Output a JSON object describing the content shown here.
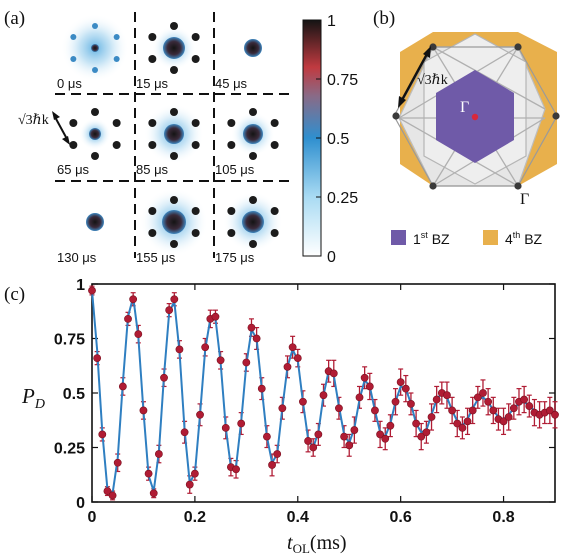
{
  "panel_a": {
    "label": "(a)",
    "momentum_label": "√3ℏk",
    "cells": [
      {
        "time": "0 μs"
      },
      {
        "time": "15 μs"
      },
      {
        "time": "45 μs"
      },
      {
        "time": "65 μs"
      },
      {
        "time": "85 μs"
      },
      {
        "time": "105 μs"
      },
      {
        "time": "130 μs"
      },
      {
        "time": "155 μs"
      },
      {
        "time": "175 μs"
      }
    ],
    "colorbar": {
      "ticks": [
        "1",
        "0.75",
        "0.5",
        "0.25",
        "0"
      ],
      "colors": [
        "#ffffff",
        "#9fd6f2",
        "#2f8fcf",
        "#8a6a86",
        "#b53040",
        "#1a1a1a"
      ]
    }
  },
  "panel_b": {
    "label": "(b)",
    "momentum_label": "√3ℏk",
    "gamma_center": "Γ",
    "gamma_corner": "Γ",
    "legend": [
      {
        "main": "1",
        "sup": "st",
        "suffix": " BZ",
        "color": "#6f5aa8"
      },
      {
        "main": "4",
        "sup": "th",
        "suffix": " BZ",
        "color": "#e8b04c"
      }
    ]
  },
  "panel_c": {
    "label": "(c)",
    "ylabel_main": "P",
    "ylabel_sub": "D",
    "xlabel_main": "t",
    "xlabel_sub": "OL",
    "xlabel_unit": "(ms)"
  },
  "chart_data": {
    "type": "scatter",
    "xlim": [
      0,
      0.9
    ],
    "ylim": [
      0,
      1
    ],
    "xticks": [
      "0",
      "0.2",
      "0.4",
      "0.6",
      "0.8"
    ],
    "xtick_values": [
      0,
      0.2,
      0.4,
      0.6,
      0.8
    ],
    "yticks": [
      "0",
      "0.25",
      "0.5",
      "0.75",
      "1"
    ],
    "ytick_values": [
      0,
      0.25,
      0.5,
      0.75,
      1
    ],
    "grid": false,
    "series": [
      {
        "kind": "points",
        "marker_color": "#b01c34",
        "x": [
          0.0,
          0.01,
          0.02,
          0.03,
          0.04,
          0.05,
          0.06,
          0.07,
          0.08,
          0.09,
          0.1,
          0.11,
          0.12,
          0.13,
          0.14,
          0.15,
          0.16,
          0.17,
          0.18,
          0.19,
          0.2,
          0.21,
          0.22,
          0.23,
          0.24,
          0.25,
          0.26,
          0.27,
          0.28,
          0.29,
          0.3,
          0.31,
          0.32,
          0.33,
          0.34,
          0.35,
          0.36,
          0.37,
          0.38,
          0.39,
          0.4,
          0.41,
          0.42,
          0.43,
          0.44,
          0.45,
          0.46,
          0.47,
          0.48,
          0.49,
          0.5,
          0.51,
          0.52,
          0.53,
          0.54,
          0.55,
          0.56,
          0.57,
          0.58,
          0.59,
          0.6,
          0.61,
          0.62,
          0.63,
          0.64,
          0.65,
          0.66,
          0.67,
          0.68,
          0.69,
          0.7,
          0.71,
          0.72,
          0.73,
          0.74,
          0.75,
          0.76,
          0.77,
          0.78,
          0.79,
          0.8,
          0.81,
          0.82,
          0.83,
          0.84,
          0.85,
          0.86,
          0.87,
          0.88,
          0.89,
          0.9
        ],
        "y": [
          0.97,
          0.66,
          0.31,
          0.05,
          0.03,
          0.18,
          0.53,
          0.84,
          0.93,
          0.77,
          0.42,
          0.13,
          0.04,
          0.22,
          0.57,
          0.88,
          0.93,
          0.7,
          0.32,
          0.08,
          0.13,
          0.4,
          0.71,
          0.84,
          0.85,
          0.65,
          0.34,
          0.16,
          0.15,
          0.36,
          0.64,
          0.8,
          0.75,
          0.52,
          0.3,
          0.17,
          0.22,
          0.43,
          0.62,
          0.71,
          0.66,
          0.46,
          0.28,
          0.25,
          0.31,
          0.49,
          0.6,
          0.59,
          0.43,
          0.3,
          0.26,
          0.33,
          0.48,
          0.57,
          0.53,
          0.42,
          0.31,
          0.29,
          0.35,
          0.46,
          0.55,
          0.52,
          0.45,
          0.36,
          0.3,
          0.32,
          0.39,
          0.47,
          0.5,
          0.49,
          0.42,
          0.36,
          0.34,
          0.37,
          0.42,
          0.48,
          0.5,
          0.46,
          0.42,
          0.38,
          0.37,
          0.39,
          0.43,
          0.46,
          0.47,
          0.44,
          0.41,
          0.4,
          0.41,
          0.42,
          0.4
        ],
        "err": [
          0.02,
          0.03,
          0.03,
          0.02,
          0.02,
          0.04,
          0.04,
          0.03,
          0.03,
          0.04,
          0.04,
          0.03,
          0.02,
          0.04,
          0.04,
          0.03,
          0.03,
          0.04,
          0.05,
          0.04,
          0.03,
          0.05,
          0.04,
          0.04,
          0.03,
          0.04,
          0.05,
          0.04,
          0.04,
          0.05,
          0.04,
          0.04,
          0.05,
          0.05,
          0.05,
          0.05,
          0.04,
          0.05,
          0.05,
          0.05,
          0.04,
          0.05,
          0.05,
          0.04,
          0.05,
          0.05,
          0.05,
          0.06,
          0.05,
          0.05,
          0.05,
          0.06,
          0.05,
          0.05,
          0.06,
          0.05,
          0.06,
          0.05,
          0.05,
          0.06,
          0.06,
          0.06,
          0.05,
          0.06,
          0.06,
          0.05,
          0.06,
          0.06,
          0.05,
          0.06,
          0.06,
          0.06,
          0.05,
          0.06,
          0.06,
          0.05,
          0.06,
          0.06,
          0.06,
          0.05,
          0.06,
          0.06,
          0.05,
          0.06,
          0.06,
          0.05,
          0.06,
          0.06,
          0.05,
          0.06,
          0.06
        ]
      },
      {
        "kind": "fit",
        "line_color": "#2f7fc1",
        "x": [
          0.0,
          0.01,
          0.02,
          0.03,
          0.04,
          0.05,
          0.06,
          0.07,
          0.08,
          0.09,
          0.1,
          0.11,
          0.12,
          0.13,
          0.14,
          0.15,
          0.16,
          0.17,
          0.18,
          0.19,
          0.2,
          0.21,
          0.22,
          0.23,
          0.24,
          0.25,
          0.26,
          0.27,
          0.28,
          0.29,
          0.3,
          0.31,
          0.32,
          0.33,
          0.34,
          0.35,
          0.36,
          0.37,
          0.38,
          0.39,
          0.4,
          0.41,
          0.42,
          0.43,
          0.44,
          0.45,
          0.46,
          0.47,
          0.48,
          0.49,
          0.5,
          0.51,
          0.52,
          0.53,
          0.54,
          0.55,
          0.56,
          0.57,
          0.58,
          0.59,
          0.6,
          0.61,
          0.62,
          0.63,
          0.64,
          0.65,
          0.66,
          0.67,
          0.68,
          0.69,
          0.7,
          0.71,
          0.72,
          0.73,
          0.74,
          0.75,
          0.76,
          0.77,
          0.78,
          0.79,
          0.8,
          0.81,
          0.82,
          0.83,
          0.84,
          0.85,
          0.86,
          0.87,
          0.88,
          0.89,
          0.9
        ],
        "y": [
          0.97,
          0.7,
          0.32,
          0.06,
          0.04,
          0.2,
          0.55,
          0.85,
          0.94,
          0.76,
          0.42,
          0.12,
          0.05,
          0.23,
          0.58,
          0.87,
          0.92,
          0.69,
          0.33,
          0.09,
          0.13,
          0.4,
          0.7,
          0.84,
          0.84,
          0.64,
          0.34,
          0.16,
          0.16,
          0.37,
          0.63,
          0.79,
          0.75,
          0.52,
          0.3,
          0.18,
          0.22,
          0.43,
          0.62,
          0.7,
          0.65,
          0.46,
          0.29,
          0.25,
          0.32,
          0.49,
          0.6,
          0.58,
          0.44,
          0.31,
          0.27,
          0.34,
          0.47,
          0.56,
          0.53,
          0.42,
          0.32,
          0.3,
          0.36,
          0.46,
          0.53,
          0.52,
          0.45,
          0.36,
          0.32,
          0.33,
          0.4,
          0.47,
          0.5,
          0.48,
          0.42,
          0.37,
          0.35,
          0.38,
          0.43,
          0.47,
          0.48,
          0.46,
          0.42,
          0.39,
          0.38,
          0.4,
          0.43,
          0.45,
          0.46,
          0.44,
          0.42,
          0.41,
          0.41,
          0.42,
          0.41
        ]
      }
    ]
  }
}
